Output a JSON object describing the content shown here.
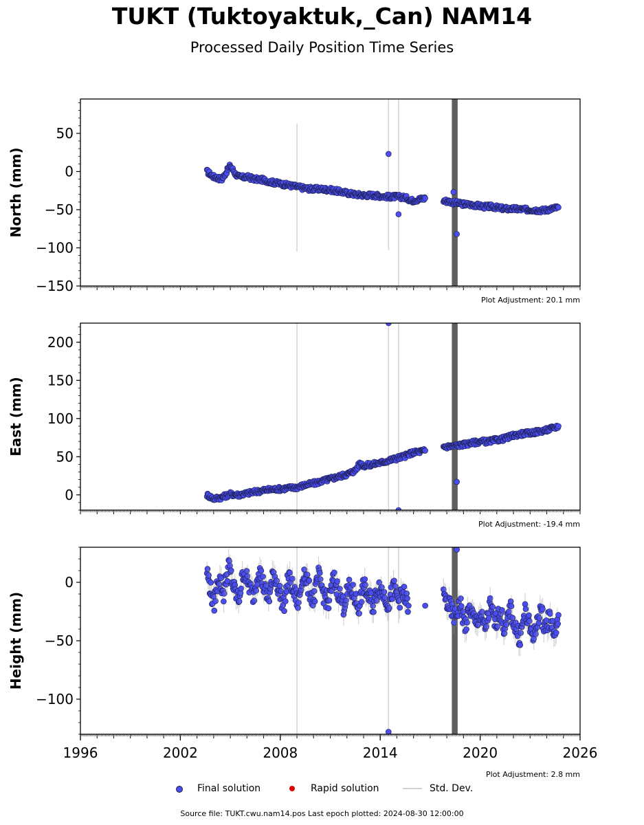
{
  "title": "TUKT (Tuktoyaktuk,_Can) NAM14",
  "subtitle": "Processed Daily Position Time Series",
  "footer": "Source file: TUKT.cwu.nam14.pos  Last epoch plotted: 2024-08-30 12:00:00",
  "legend": [
    {
      "label": "Final solution",
      "kind": "dot",
      "color": "#4a4ef0"
    },
    {
      "label": "Rapid solution",
      "kind": "dot",
      "color": "#e00000"
    },
    {
      "label": "Std. Dev.",
      "kind": "line",
      "color": "#d3d3d3"
    }
  ],
  "colors": {
    "point_fill": "#4a4ef0",
    "point_edge": "#1a1a40",
    "stddev": "#d3d3d3",
    "dense_bar": "#5f5f5f"
  },
  "chart_data": [
    {
      "type": "scatter",
      "ylabel": "North (mm)",
      "xlim": [
        1996,
        2026
      ],
      "ylim": [
        -150,
        95
      ],
      "yticks": [
        -150,
        -100,
        -50,
        0,
        50
      ],
      "yticklabels": [
        "−150",
        "−100",
        "−50",
        "0",
        "50"
      ],
      "adjustment": "Plot Adjustment: 20.1 mm",
      "series": [
        {
          "name": "Final solution",
          "x": [
            2003.6,
            2004.0,
            2004.5,
            2005.0,
            2005.3,
            2005.6,
            2006.0,
            2006.5,
            2007.0,
            2007.5,
            2008.0,
            2008.5,
            2009.0,
            2009.5,
            2010.0,
            2010.5,
            2011.0,
            2011.5,
            2012.0,
            2012.5,
            2013.0,
            2013.5,
            2014.0,
            2014.5,
            2015.0,
            2015.5,
            2015.9,
            2016.7,
            2017.8,
            2018.3,
            2018.7,
            2019.2,
            2019.7,
            2020.2,
            2020.7,
            2021.2,
            2021.7,
            2022.2,
            2022.7,
            2023.2,
            2023.7,
            2024.0,
            2024.7
          ],
          "y": [
            0,
            -7,
            -10,
            8,
            -3,
            -8,
            -7,
            -10,
            -11,
            -14,
            -16,
            -18,
            -20,
            -22,
            -23,
            -23,
            -24,
            -26,
            -28,
            -30,
            -31,
            -31,
            -32,
            -33,
            -33,
            -34,
            -38,
            -35,
            -38,
            -40,
            -42,
            -43,
            -44,
            -46,
            -46,
            -48,
            -49,
            -49,
            -50,
            -50,
            -51,
            -50,
            -47
          ]
        }
      ],
      "outliers": {
        "x": [
          2014.5,
          2015.1,
          2018.4,
          2018.6
        ],
        "y": [
          23,
          -56,
          -27,
          -82
        ]
      },
      "stddev_lines": {
        "x": [
          2009.0,
          2014.5,
          2015.1
        ],
        "low": [
          -105,
          -103,
          -150
        ],
        "high": [
          63,
          95,
          95
        ]
      },
      "dense_band": {
        "x_start": 2018.3,
        "x_end": 2018.65
      }
    },
    {
      "type": "scatter",
      "ylabel": "East (mm)",
      "xlim": [
        1996,
        2026
      ],
      "ylim": [
        -20,
        225
      ],
      "yticks": [
        0,
        50,
        100,
        150,
        200
      ],
      "yticklabels": [
        "0",
        "50",
        "100",
        "150",
        "200"
      ],
      "adjustment": "Plot Adjustment: -19.4 mm",
      "series": [
        {
          "name": "Final solution",
          "x": [
            2003.6,
            2004.0,
            2004.5,
            2005.0,
            2005.5,
            2006.0,
            2006.5,
            2007.0,
            2007.5,
            2008.0,
            2008.5,
            2009.0,
            2009.5,
            2010.0,
            2010.5,
            2011.0,
            2011.5,
            2012.0,
            2012.5,
            2012.8,
            2013.0,
            2013.5,
            2014.0,
            2014.5,
            2015.0,
            2015.5,
            2015.9,
            2016.7,
            2017.8,
            2018.4,
            2019.0,
            2019.5,
            2020.0,
            2020.5,
            2021.0,
            2021.5,
            2022.0,
            2022.5,
            2023.0,
            2023.5,
            2024.0,
            2024.7
          ],
          "y": [
            0,
            -5,
            -3,
            1,
            0,
            2,
            4,
            6,
            7,
            8,
            9,
            10,
            13,
            15,
            18,
            21,
            24,
            27,
            32,
            42,
            38,
            40,
            42,
            45,
            48,
            51,
            55,
            58,
            63,
            64,
            66,
            68,
            70,
            70,
            72,
            74,
            78,
            80,
            81,
            83,
            85,
            90
          ]
        }
      ],
      "outliers": {
        "x": [
          2014.5,
          2015.1,
          2018.6
        ],
        "y": [
          225,
          -20,
          17
        ]
      },
      "stddev_lines": {
        "x": [
          2009.0,
          2014.5,
          2015.1
        ],
        "low": [
          -20,
          -20,
          -20
        ],
        "high": [
          225,
          225,
          225
        ]
      },
      "dense_band": {
        "x_start": 2018.3,
        "x_end": 2018.65
      }
    },
    {
      "type": "scatter",
      "ylabel": "Height (mm)",
      "xlim": [
        1996,
        2026
      ],
      "ylim": [
        -130,
        30
      ],
      "yticks": [
        -100,
        -50,
        0
      ],
      "yticklabels": [
        "−100",
        "−50",
        "0"
      ],
      "xticks": [
        1996,
        2002,
        2008,
        2014,
        2020,
        2026
      ],
      "xticklabels": [
        "1996",
        "2002",
        "2008",
        "2014",
        "2020",
        "2026"
      ],
      "adjustment": "Plot Adjustment: 2.8 mm",
      "series": [
        {
          "name": "Final solution",
          "x": [
            2003.6,
            2003.8,
            2004.0,
            2004.3,
            2004.6,
            2004.9,
            2005.2,
            2005.5,
            2005.8,
            2006.1,
            2006.4,
            2006.7,
            2007.0,
            2007.3,
            2007.6,
            2007.9,
            2008.2,
            2008.5,
            2008.8,
            2009.1,
            2009.4,
            2009.7,
            2010.0,
            2010.3,
            2010.6,
            2010.9,
            2011.2,
            2011.5,
            2011.8,
            2012.1,
            2012.4,
            2012.7,
            2013.0,
            2013.3,
            2013.6,
            2013.9,
            2014.2,
            2014.5,
            2014.8,
            2015.1,
            2015.4,
            2015.7,
            2016.7,
            2017.8,
            2018.5,
            2018.8,
            2019.1,
            2019.4,
            2019.7,
            2020.0,
            2020.3,
            2020.6,
            2020.9,
            2021.2,
            2021.5,
            2021.8,
            2022.1,
            2022.4,
            2022.7,
            2023.0,
            2023.3,
            2023.6,
            2023.9,
            2024.2,
            2024.5,
            2024.7
          ],
          "y": [
            10,
            -5,
            -20,
            5,
            -10,
            15,
            -5,
            -15,
            10,
            -2,
            -12,
            12,
            -3,
            -15,
            8,
            -5,
            -20,
            5,
            -8,
            -18,
            10,
            -5,
            -15,
            5,
            -10,
            -18,
            3,
            -8,
            -20,
            -5,
            -10,
            -22,
            -3,
            -12,
            -20,
            -2,
            -10,
            -18,
            -5,
            -15,
            -10,
            -20,
            -20,
            -12,
            -30,
            -18,
            -38,
            -22,
            -35,
            -28,
            -40,
            -20,
            -35,
            -25,
            -42,
            -22,
            -38,
            -48,
            -25,
            -40,
            -45,
            -22,
            -38,
            -30,
            -45,
            -28
          ]
        }
      ],
      "outliers": {
        "x": [
          2014.5,
          2018.6
        ],
        "y": [
          -128,
          28
        ]
      },
      "stddev_lines": {
        "x": [
          2009.0,
          2014.5,
          2015.1
        ],
        "low": [
          -130,
          -130,
          -35
        ],
        "high": [
          30,
          30,
          30
        ]
      },
      "dense_band": {
        "x_start": 2018.3,
        "x_end": 2018.65
      }
    }
  ]
}
